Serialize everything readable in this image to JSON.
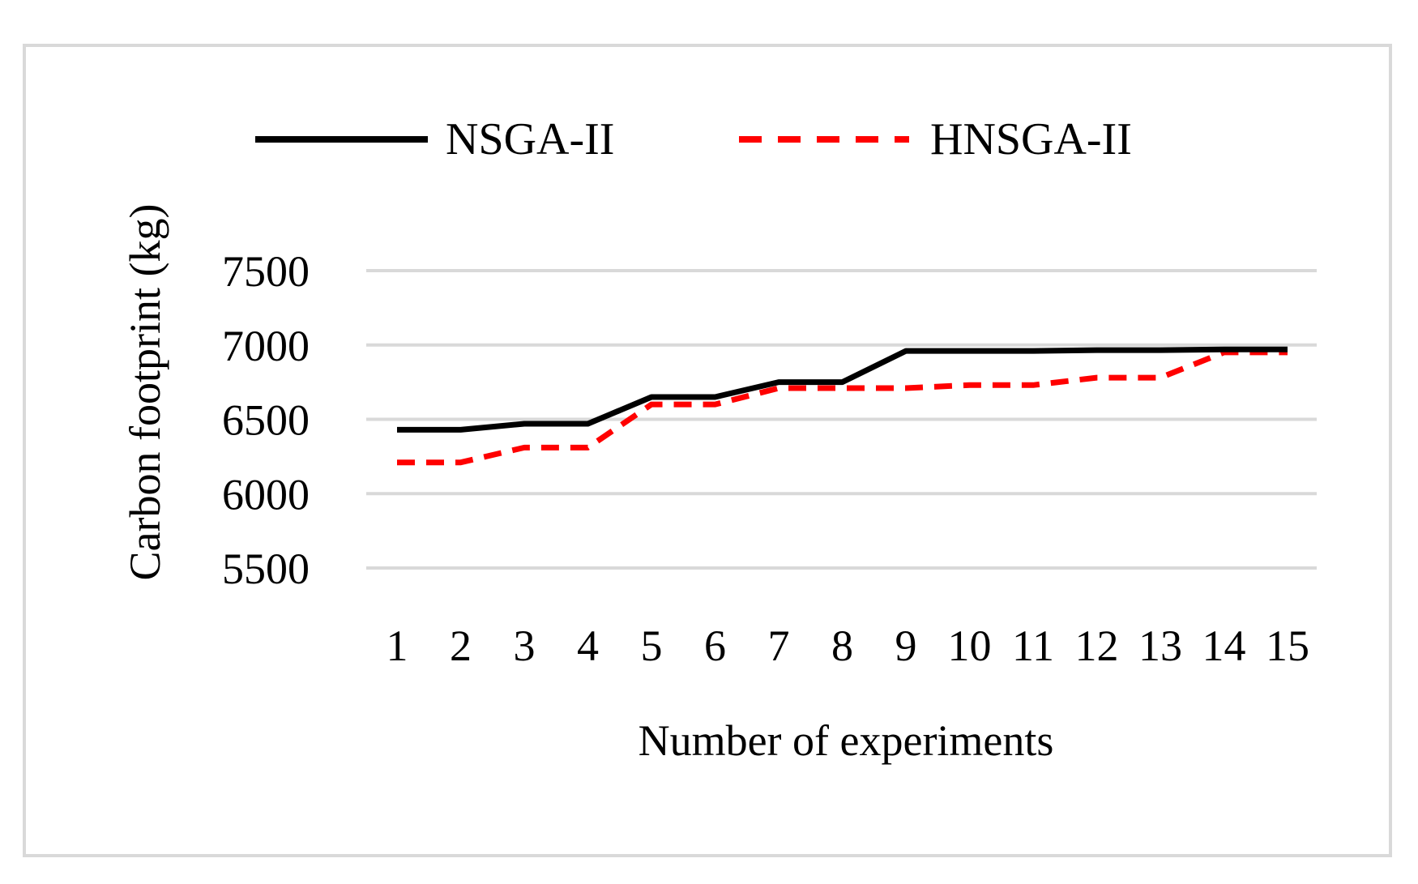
{
  "chart_data": {
    "type": "line",
    "title": "",
    "xlabel": "Number of experiments",
    "ylabel": "Carbon footprint (kg)",
    "categories": [
      "1",
      "2",
      "3",
      "4",
      "5",
      "6",
      "7",
      "8",
      "9",
      "10",
      "11",
      "12",
      "13",
      "14",
      "15"
    ],
    "ylim": [
      5500,
      7500
    ],
    "yticks": [
      "7500",
      "7000",
      "6500",
      "6000",
      "5500"
    ],
    "grid": true,
    "legend_position": "top",
    "series": [
      {
        "name": "NSGA-II",
        "color": "#000000",
        "dash": "solid",
        "values": [
          6430,
          6430,
          6470,
          6470,
          6650,
          6650,
          6750,
          6750,
          6960,
          6960,
          6960,
          6965,
          6965,
          6970,
          6970
        ]
      },
      {
        "name": "HNSGA-II",
        "color": "#ff0000",
        "dash": "dashed",
        "values": [
          6210,
          6210,
          6310,
          6310,
          6600,
          6600,
          6710,
          6710,
          6710,
          6730,
          6730,
          6780,
          6780,
          6950,
          6950
        ]
      }
    ]
  }
}
